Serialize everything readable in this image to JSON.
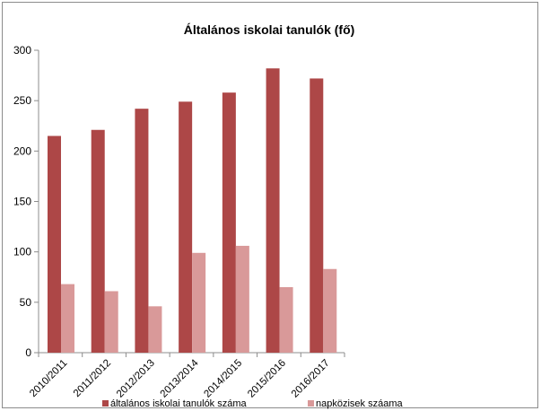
{
  "chart_data": {
    "type": "bar",
    "title": "Általános iskolai tanulók (fő)",
    "xlabel": "",
    "ylabel": "",
    "ylim": [
      0,
      300
    ],
    "yticks": [
      0,
      50,
      100,
      150,
      200,
      250,
      300
    ],
    "categories": [
      "2010/2011",
      "2011/2012",
      "2012/2013",
      "2013/2014",
      "2014/2015",
      "2015/2016",
      "2016/2017"
    ],
    "series": [
      {
        "name": "általános iskolai tanulók száma",
        "color": "#ad4747",
        "values": [
          215,
          221,
          242,
          249,
          258,
          282,
          272
        ]
      },
      {
        "name": "napközisek száama",
        "color": "#d99999",
        "values": [
          68,
          61,
          46,
          99,
          106,
          65,
          83
        ]
      }
    ],
    "legend_position": "bottom",
    "grid": false
  }
}
